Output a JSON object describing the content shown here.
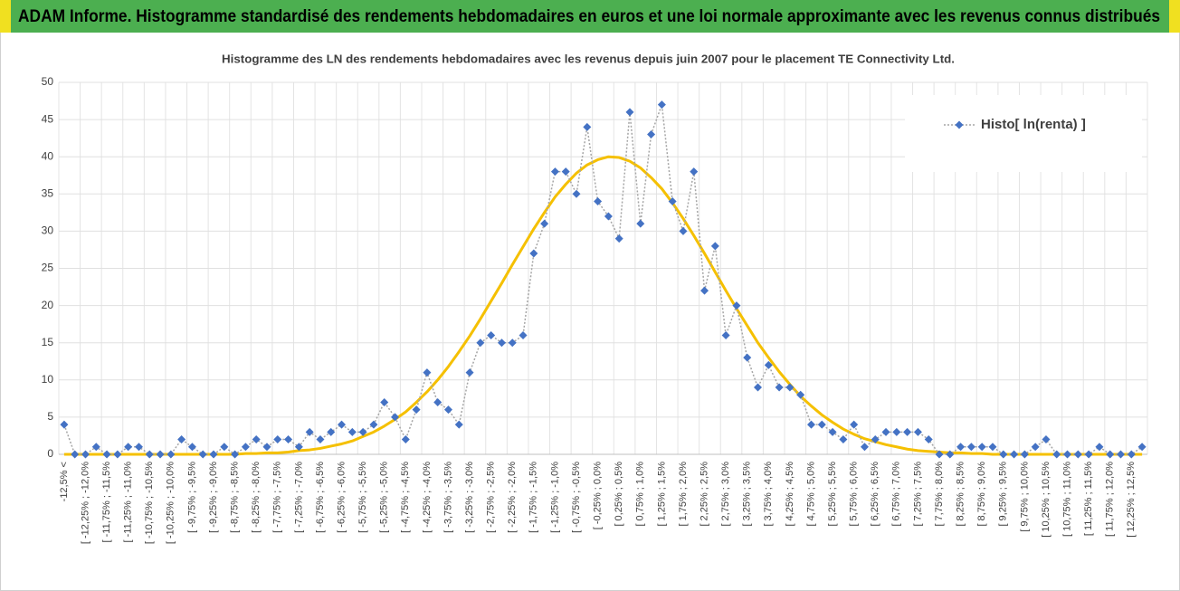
{
  "chart_data": {
    "type": "line",
    "title": "ADAM Informe. Histogramme standardisé des rendements hebdomadaires en euros et une loi normale approximante avec les revenus connus distribués",
    "subtitle": "Histogramme des LN des rendements hebdomadaires avec les revenus depuis juin 2007 pour le placement TE Connectivity Ltd.",
    "categories": [
      "-12,5% <",
      null,
      "[ -12,25% ; -12,0%",
      null,
      "[ -11,75% ; -11,5%",
      null,
      "[ -11,25% ; -11,0%",
      null,
      "[ -10,75% ; -10,5%",
      null,
      "[ -10,25% ; -10,0%",
      null,
      "[ -9,75% ; -9,5%",
      null,
      "[ -9,25% ; -9,0%",
      null,
      "[ -8,75% ; -8,5%",
      null,
      "[ -8,25% ; -8,0%",
      null,
      "[ -7,75% ; -7,5%",
      null,
      "[ -7,25% ; -7,0%",
      null,
      "[ -6,75% ; -6,5%",
      null,
      "[ -6,25% ; -6,0%",
      null,
      "[ -5,75% ; -5,5%",
      null,
      "[ -5,25% ; -5,0%",
      null,
      "[ -4,75% ; -4,5%",
      null,
      "[ -4,25% ; -4,0%",
      null,
      "[ -3,75% ; -3,5%",
      null,
      "[ -3,25% ; -3,0%",
      null,
      "[ -2,75% ; -2,5%",
      null,
      "[ -2,25% ; -2,0%",
      null,
      "[ -1,75% ; -1,5%",
      null,
      "[ -1,25% ; -1,0%",
      null,
      "[ -0,75% ; -0,5%",
      null,
      "[ -0,25% ; 0,0%",
      null,
      "[ 0,25% ; 0,5%",
      null,
      "[ 0,75% ; 1,0%",
      null,
      "[ 1,25% ; 1,5%",
      null,
      "[ 1,75% ; 2,0%",
      null,
      "[ 2,25% ; 2,5%",
      null,
      "[ 2,75% ; 3,0%",
      null,
      "[ 3,25% ; 3,5%",
      null,
      "[ 3,75% ; 4,0%",
      null,
      "[ 4,25% ; 4,5%",
      null,
      "[ 4,75% ; 5,0%",
      null,
      "[ 5,25% ; 5,5%",
      null,
      "[ 5,75% ; 6,0%",
      null,
      "[ 6,25% ; 6,5%",
      null,
      "[ 6,75% ; 7,0%",
      null,
      "[ 7,25% ; 7,5%",
      null,
      "[ 7,75% ; 8,0%",
      null,
      "[ 8,25% ; 8,5%",
      null,
      "[ 8,75% ; 9,0%",
      null,
      "[ 9,25% ; 9,5%",
      null,
      "[ 9,75% ; 10,0%",
      null,
      "[ 10,25% ; 10,5%",
      null,
      "[ 10,75% ; 11,0%",
      null,
      "[ 11,25% ; 11,5%",
      null,
      "[ 11,75% ; 12,0%",
      null,
      "[ 12,25% ; 12,5%",
      null
    ],
    "series": [
      {
        "name": "Histo[ ln(renta) ]",
        "color": "#4472c4",
        "line_color": "#a5a5a5",
        "values": [
          4,
          0,
          0,
          1,
          0,
          0,
          1,
          1,
          0,
          0,
          0,
          2,
          1,
          0,
          0,
          1,
          0,
          1,
          2,
          1,
          2,
          2,
          1,
          3,
          2,
          3,
          4,
          3,
          3,
          4,
          7,
          5,
          2,
          6,
          11,
          7,
          6,
          4,
          11,
          15,
          16,
          15,
          15,
          16,
          27,
          31,
          38,
          38,
          35,
          44,
          34,
          32,
          29,
          46,
          31,
          43,
          47,
          34,
          30,
          38,
          22,
          28,
          16,
          20,
          13,
          9,
          12,
          9,
          9,
          8,
          4,
          4,
          3,
          2,
          4,
          1,
          2,
          3,
          3,
          3,
          3,
          2,
          0,
          0,
          1,
          1,
          1,
          1,
          0,
          0,
          0,
          1,
          2,
          0,
          0,
          0,
          0,
          1,
          0,
          0,
          0,
          1
        ]
      }
    ],
    "curve": {
      "color": "#f5c000",
      "values": [
        0,
        0,
        0,
        0,
        0,
        0,
        0,
        0,
        0,
        0,
        0,
        0,
        0,
        0,
        0,
        0,
        0,
        0.1,
        0.1,
        0.2,
        0.2,
        0.3,
        0.5,
        0.6,
        0.8,
        1.1,
        1.4,
        1.8,
        2.4,
        3.0,
        3.8,
        4.7,
        5.7,
        7.0,
        8.4,
        10.0,
        11.8,
        13.8,
        15.9,
        18.2,
        20.6,
        23.0,
        25.5,
        27.9,
        30.3,
        32.5,
        34.6,
        36.3,
        37.8,
        38.9,
        39.6,
        40.0,
        39.9,
        39.4,
        38.5,
        37.2,
        35.7,
        33.8,
        31.7,
        29.4,
        27.0,
        24.5,
        22.0,
        19.6,
        17.3,
        15.0,
        13.0,
        11.1,
        9.4,
        7.8,
        6.5,
        5.3,
        4.3,
        3.4,
        2.7,
        2.1,
        1.7,
        1.3,
        1.0,
        0.7,
        0.5,
        0.4,
        0.3,
        0.2,
        0.2,
        0.1,
        0.1,
        0,
        0,
        0,
        0,
        0,
        0,
        0,
        0,
        0,
        0,
        0,
        0,
        0,
        0,
        0
      ]
    },
    "ylim": [
      0,
      50
    ],
    "yticks": [
      0,
      5,
      10,
      15,
      20,
      25,
      30,
      35,
      40,
      45,
      50
    ],
    "grid": true,
    "legend": "top-right"
  }
}
